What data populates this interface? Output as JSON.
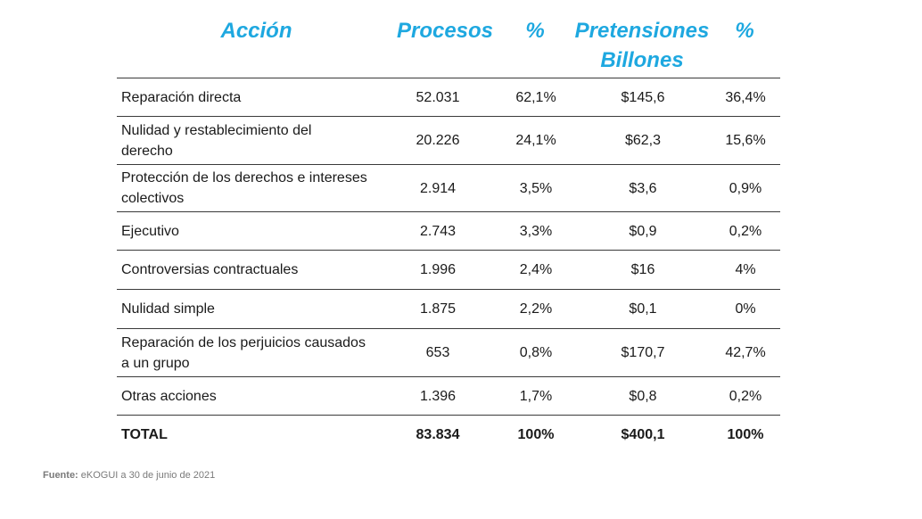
{
  "header": {
    "accion": "Acción",
    "procesos": "Procesos",
    "pct1": "%",
    "pretensiones_line1": "Pretensiones",
    "pretensiones_line2": "Billones",
    "pct2": "%"
  },
  "rows": [
    {
      "accion": "Reparación directa",
      "accion2": "",
      "procesos": "52.031",
      "pct1": "62,1%",
      "pretensiones": "$145,6",
      "pct2": "36,4%"
    },
    {
      "accion": "Nulidad y restablecimiento del",
      "accion2": "derecho",
      "procesos": "20.226",
      "pct1": "24,1%",
      "pretensiones": "$62,3",
      "pct2": "15,6%"
    },
    {
      "accion": "Protección de los derechos e intereses",
      "accion2": "colectivos",
      "procesos": "2.914",
      "pct1": "3,5%",
      "pretensiones": "$3,6",
      "pct2": "0,9%"
    },
    {
      "accion": "Ejecutivo",
      "accion2": "",
      "procesos": "2.743",
      "pct1": "3,3%",
      "pretensiones": "$0,9",
      "pct2": "0,2%"
    },
    {
      "accion": "Controversias contractuales",
      "accion2": "",
      "procesos": "1.996",
      "pct1": "2,4%",
      "pretensiones": "$16",
      "pct2": "4%"
    },
    {
      "accion": "Nulidad simple",
      "accion2": "",
      "procesos": "1.875",
      "pct1": "2,2%",
      "pretensiones": "$0,1",
      "pct2": "0%"
    },
    {
      "accion": "Reparación de los perjuicios causados",
      "accion2": "a un grupo",
      "procesos": "653",
      "pct1": "0,8%",
      "pretensiones": "$170,7",
      "pct2": "42,7%"
    },
    {
      "accion": "Otras acciones",
      "accion2": "",
      "procesos": "1.396",
      "pct1": "1,7%",
      "pretensiones": "$0,8",
      "pct2": "0,2%"
    }
  ],
  "total": {
    "accion": "TOTAL",
    "procesos": "83.834",
    "pct1": "100%",
    "pretensiones": "$400,1",
    "pct2": "100%"
  },
  "source": {
    "label": "Fuente:",
    "text": " eKOGUI a 30 de junio de 2021"
  }
}
